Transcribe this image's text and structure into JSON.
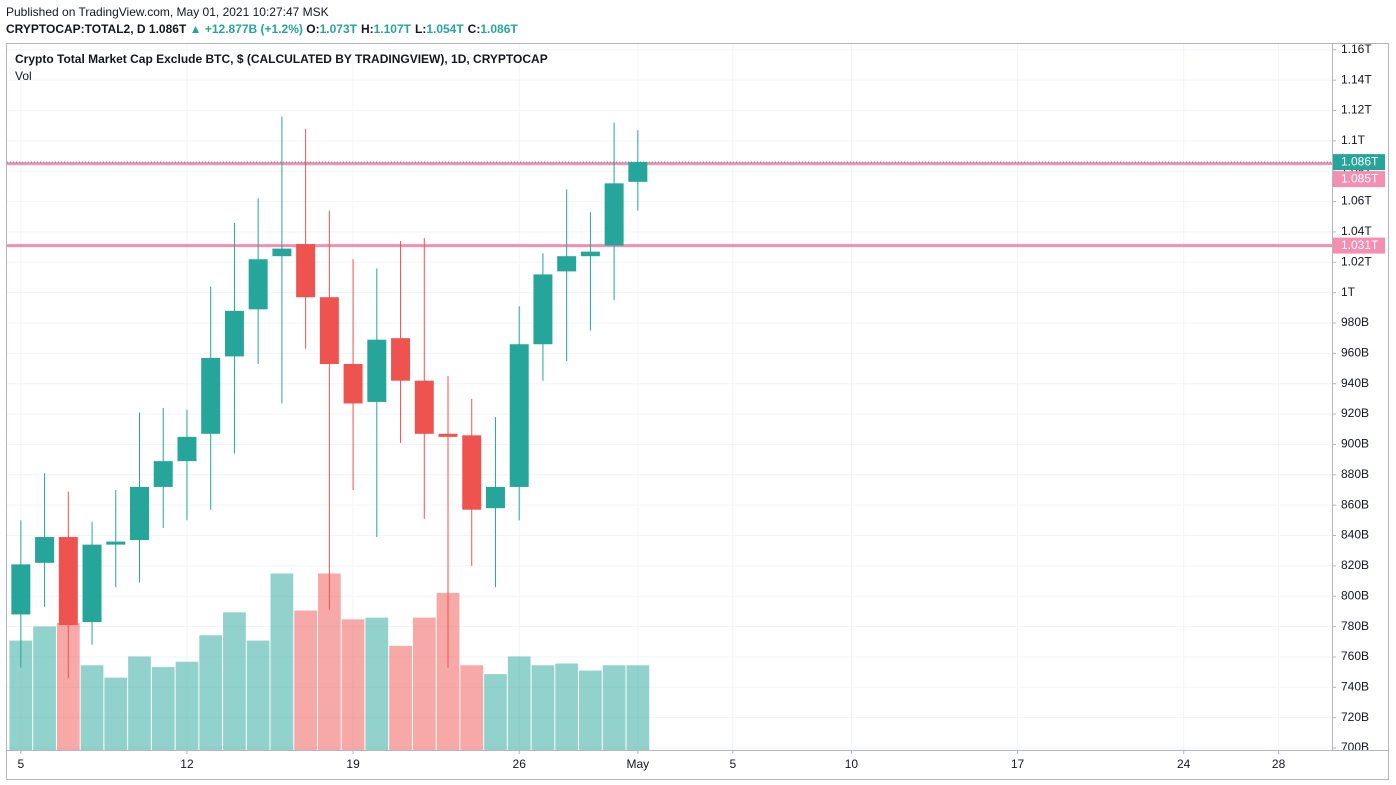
{
  "header": {
    "published": "Published on TradingView.com, May 01, 2021 10:27:47 MSK",
    "symbol": "CRYPTOCAP:TOTAL2, D",
    "last": "1.086T",
    "change": "▲ +12.877B (+1.2%)",
    "ohlc": [
      {
        "key": "O:",
        "value": "1.073T"
      },
      {
        "key": "H:",
        "value": "1.107T"
      },
      {
        "key": "L:",
        "value": "1.054T"
      },
      {
        "key": "C:",
        "value": "1.086T"
      }
    ]
  },
  "chart_data": {
    "type": "candlestick",
    "title": "Crypto Total Market Cap Exclude BTC, $ (CALCULATED BY TRADINGVIEW), 1D, CRYPTOCAP",
    "volume_label": "Vol",
    "x": [
      "2021-04-05",
      "2021-04-06",
      "2021-04-07",
      "2021-04-08",
      "2021-04-09",
      "2021-04-10",
      "2021-04-11",
      "2021-04-12",
      "2021-04-13",
      "2021-04-14",
      "2021-04-15",
      "2021-04-16",
      "2021-04-17",
      "2021-04-18",
      "2021-04-19",
      "2021-04-20",
      "2021-04-21",
      "2021-04-22",
      "2021-04-23",
      "2021-04-24",
      "2021-04-25",
      "2021-04-26",
      "2021-04-27",
      "2021-04-28",
      "2021-04-29",
      "2021-04-30",
      "2021-05-01"
    ],
    "open": [
      788,
      822,
      839,
      783,
      834,
      837,
      872,
      889,
      907,
      958,
      989,
      1024,
      1032,
      997,
      953,
      928,
      970,
      942,
      907,
      906,
      858,
      872,
      966,
      1014,
      1024,
      1031,
      1073
    ],
    "high": [
      850,
      881,
      869,
      849,
      870,
      921,
      924,
      923,
      1004,
      1046,
      1062,
      1116,
      1108,
      1054,
      1022,
      1016,
      1034,
      1036,
      945,
      930,
      918,
      991,
      1026,
      1068,
      1053,
      1112,
      1107
    ],
    "low": [
      753,
      793,
      746,
      768,
      806,
      809,
      845,
      850,
      857,
      894,
      953,
      927,
      963,
      791,
      870,
      839,
      901,
      851,
      753,
      820,
      806,
      850,
      942,
      955,
      975,
      995,
      1054
    ],
    "close": [
      821,
      839,
      781,
      834,
      836,
      872,
      889,
      905,
      957,
      988,
      1022,
      1029,
      997,
      953,
      927,
      969,
      942,
      907,
      905,
      857,
      872,
      966,
      1012,
      1024,
      1027,
      1072,
      1086
    ],
    "volume": [
      62,
      70,
      72,
      48,
      41,
      53,
      47,
      50,
      65,
      78,
      62,
      100,
      79,
      100,
      74,
      75,
      59,
      75,
      89,
      48,
      43,
      53,
      48,
      49,
      45,
      48,
      48
    ],
    "volume_lim": [
      0,
      400
    ],
    "up_color": "#26a69a",
    "down_color": "#ef5350",
    "xlim": [
      "2021-04-04T10:00",
      "2021-05-30T06:00"
    ],
    "xticks": [
      {
        "value": "2021-04-05",
        "label": "5"
      },
      {
        "value": "2021-04-12",
        "label": "12"
      },
      {
        "value": "2021-04-19",
        "label": "19"
      },
      {
        "value": "2021-04-26",
        "label": "26"
      },
      {
        "value": "2021-05-01",
        "label": "May"
      },
      {
        "value": "2021-05-05",
        "label": "5"
      },
      {
        "value": "2021-05-10",
        "label": "10"
      },
      {
        "value": "2021-05-17",
        "label": "17"
      },
      {
        "value": "2021-05-24",
        "label": "24"
      },
      {
        "value": "2021-05-28",
        "label": "28"
      }
    ],
    "ylim": [
      698.7,
      1163.8
    ],
    "yticks": [
      {
        "value": 1160,
        "label": "1.16T"
      },
      {
        "value": 1140,
        "label": "1.14T"
      },
      {
        "value": 1120,
        "label": "1.12T"
      },
      {
        "value": 1100,
        "label": "1.1T"
      },
      {
        "value": 1080,
        "label": "1.08T"
      },
      {
        "value": 1060,
        "label": "1.06T"
      },
      {
        "value": 1040,
        "label": "1.04T"
      },
      {
        "value": 1020,
        "label": "1.02T"
      },
      {
        "value": 1000,
        "label": "1T"
      },
      {
        "value": 980,
        "label": "980B"
      },
      {
        "value": 960,
        "label": "960B"
      },
      {
        "value": 940,
        "label": "940B"
      },
      {
        "value": 920,
        "label": "920B"
      },
      {
        "value": 900,
        "label": "900B"
      },
      {
        "value": 880,
        "label": "880B"
      },
      {
        "value": 860,
        "label": "860B"
      },
      {
        "value": 840,
        "label": "840B"
      },
      {
        "value": 820,
        "label": "820B"
      },
      {
        "value": 800,
        "label": "800B"
      },
      {
        "value": 780,
        "label": "780B"
      },
      {
        "value": 760,
        "label": "760B"
      },
      {
        "value": 740,
        "label": "740B"
      },
      {
        "value": 720,
        "label": "720B"
      },
      {
        "value": 700,
        "label": "700B"
      }
    ],
    "grid": true,
    "price_lines": [
      {
        "value": 1085,
        "label": "1.085T",
        "color": "#f48fb1"
      },
      {
        "value": 1031,
        "label": "1.031T",
        "color": "#f48fb1"
      }
    ],
    "last_price": {
      "value": 1086,
      "label": "1.086T",
      "color": "#26a69a"
    }
  }
}
